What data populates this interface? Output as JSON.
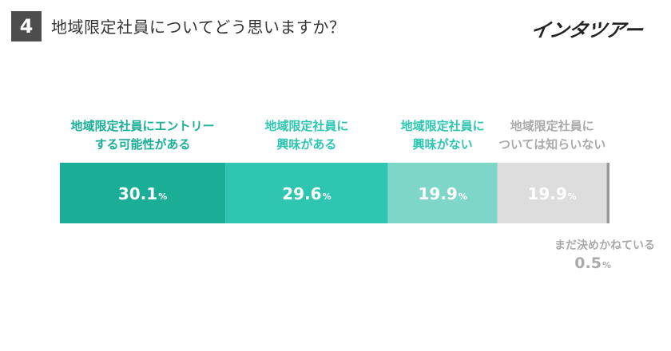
{
  "question": {
    "number": "4",
    "text": "地域限定社員についてどう思いますか？"
  },
  "brand": {
    "logo_text": "インタツアー"
  },
  "colors": {
    "header_box": "#4d4d4d",
    "minor_segment": "#999999"
  },
  "chart_data": {
    "type": "bar",
    "orientation": "horizontal-stacked-100",
    "unit": "%",
    "series": [
      {
        "name": "地域限定社員にエントリー\nする可能性がある",
        "value": 30.1,
        "color": "#1aae96",
        "label_color": "#1aae96"
      },
      {
        "name": "地域限定社員に\n興味がある",
        "value": 29.6,
        "color": "#2ec5b1",
        "label_color": "#2ec5b1"
      },
      {
        "name": "地域限定社員に\n興味がない",
        "value": 19.9,
        "color": "#7ed6c9",
        "label_color": "#2ec5b1"
      },
      {
        "name": "地域限定社員に\nついては知らいない",
        "value": 19.9,
        "color": "#dddddd",
        "label_color": "#aaaaaa"
      },
      {
        "name": "まだ決めかねている",
        "value": 0.5,
        "color": "#999999",
        "label_color": "#aaaaaa"
      }
    ]
  }
}
